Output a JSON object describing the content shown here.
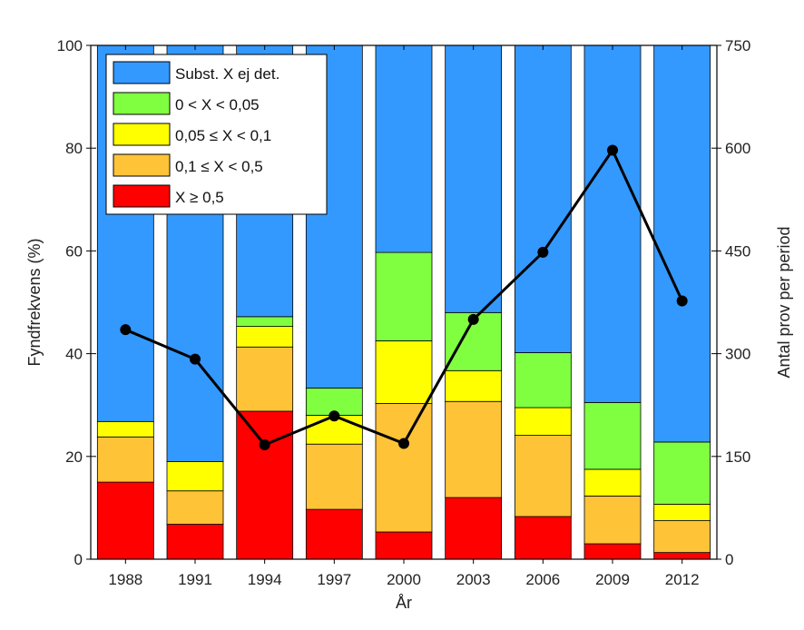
{
  "chart_data": {
    "type": "bar",
    "stacked": true,
    "categories": [
      "1988",
      "1991",
      "1994",
      "1997",
      "2000",
      "2003",
      "2006",
      "2009",
      "2012"
    ],
    "xlabel": "År",
    "ylabel": "Fyndfrekvens (%)",
    "y2label": "Antal prov per period",
    "ylim": [
      0,
      100
    ],
    "y2lim": [
      0,
      750
    ],
    "yticks": [
      0,
      20,
      40,
      60,
      80,
      100
    ],
    "y2ticks": [
      0,
      150,
      300,
      450,
      600,
      750
    ],
    "legend_position": "top-left",
    "series": [
      {
        "name": "X ≥ 0,5",
        "color": "#ff0000",
        "values": [
          15.0,
          6.8,
          28.8,
          9.7,
          5.3,
          12.0,
          8.3,
          3.0,
          1.3
        ]
      },
      {
        "name": "0,1 ≤ X < 0,5",
        "color": "#ffc338",
        "values": [
          8.8,
          6.5,
          12.5,
          12.7,
          25.0,
          18.7,
          15.8,
          9.3,
          6.2
        ]
      },
      {
        "name": "0,05 ≤ X < 0,1",
        "color": "#ffff00",
        "values": [
          3.0,
          5.7,
          4.0,
          5.6,
          12.2,
          6.0,
          5.4,
          5.2,
          3.2
        ]
      },
      {
        "name": "0 < X < 0,05",
        "color": "#80ff40",
        "values": [
          0.0,
          0.0,
          1.9,
          5.3,
          17.2,
          11.3,
          10.7,
          13.0,
          12.1
        ]
      },
      {
        "name": "Subst. X ej det.",
        "color": "#3399ff",
        "values": [
          73.2,
          81.0,
          52.8,
          66.7,
          40.3,
          52.0,
          59.8,
          69.5,
          77.2
        ]
      }
    ],
    "line_series": {
      "axis": "right",
      "color": "#000000",
      "values": [
        335,
        292,
        167,
        209,
        169,
        350,
        448,
        597,
        377
      ]
    },
    "legend_order": [
      "Subst. X ej det.",
      "0 < X < 0,05",
      "0,05 ≤ X < 0,1",
      "0,1 ≤ X < 0,5",
      "X ≥ 0,5"
    ]
  }
}
